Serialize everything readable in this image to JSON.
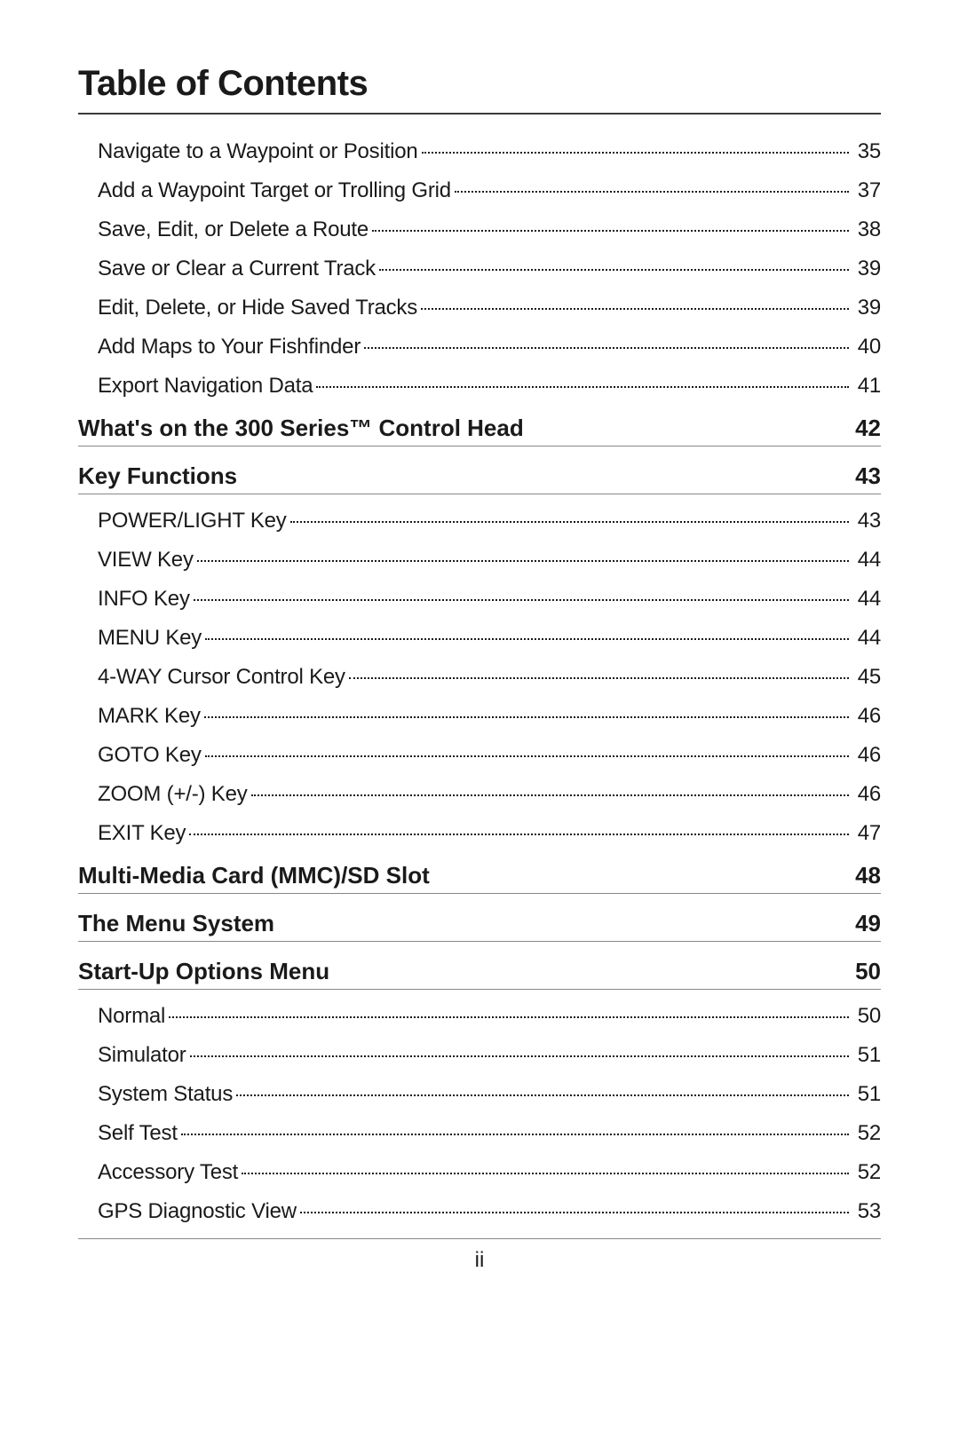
{
  "title": "Table of Contents",
  "page_label": "ii",
  "colors": {
    "text": "#1a1a1a",
    "rule_heavy": "#3a3a3a",
    "rule_light": "#888888",
    "background": "#ffffff"
  },
  "typography": {
    "title_fontsize": 40,
    "section_fontsize": 26,
    "item_fontsize": 24,
    "page_label_fontsize": 24,
    "font_family": "Helvetica Neue"
  },
  "sections": [
    {
      "title": null,
      "page": null,
      "items": [
        {
          "label": "Navigate to a Waypoint or Position",
          "page": "35"
        },
        {
          "label": "Add a Waypoint Target or Trolling Grid",
          "page": "37"
        },
        {
          "label": "Save, Edit, or Delete a Route",
          "page": "38"
        },
        {
          "label": "Save or Clear a Current Track",
          "page": "39"
        },
        {
          "label": "Edit, Delete, or Hide Saved Tracks",
          "page": "39"
        },
        {
          "label": "Add Maps to Your Fishfinder",
          "page": "40"
        },
        {
          "label": "Export Navigation Data",
          "page": "41"
        }
      ]
    },
    {
      "title": "What's on the 300 Series™ Control Head",
      "page": "42",
      "items": []
    },
    {
      "title": "Key Functions",
      "page": "43",
      "items": [
        {
          "label": "POWER/LIGHT Key ",
          "page": "43"
        },
        {
          "label": "VIEW Key ",
          "page": "44"
        },
        {
          "label": "INFO Key ",
          "page": "44"
        },
        {
          "label": "MENU Key ",
          "page": "44"
        },
        {
          "label": "4-WAY Cursor Control Key ",
          "page": "45"
        },
        {
          "label": "MARK Key",
          "page": "46"
        },
        {
          "label": "GOTO Key",
          "page": "46"
        },
        {
          "label": "ZOOM (+/-) Key",
          "page": "46"
        },
        {
          "label": "EXIT Key ",
          "page": "47"
        }
      ]
    },
    {
      "title": "Multi-Media Card (MMC)/SD Slot",
      "page": "48",
      "items": []
    },
    {
      "title": "The Menu System",
      "page": "49",
      "items": []
    },
    {
      "title": "Start-Up Options Menu",
      "page": "50",
      "items": [
        {
          "label": "Normal",
          "page": "50"
        },
        {
          "label": "Simulator ",
          "page": "51"
        },
        {
          "label": "System Status ",
          "page": "51"
        },
        {
          "label": "Self Test",
          "page": "52"
        },
        {
          "label": "Accessory Test",
          "page": "52"
        },
        {
          "label": "GPS Diagnostic View ",
          "page": "53"
        }
      ]
    }
  ]
}
